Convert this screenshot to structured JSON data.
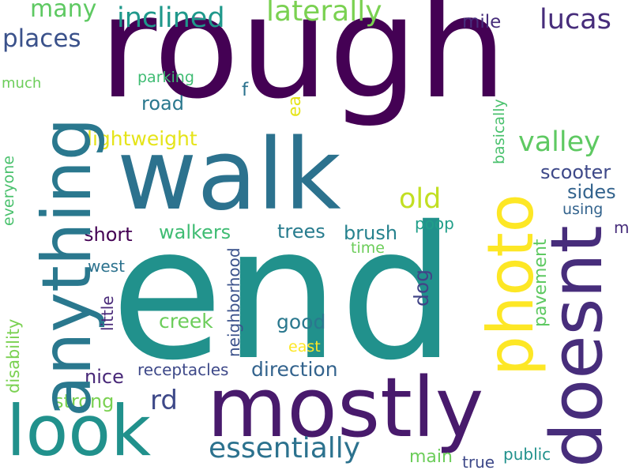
{
  "words": {
    "rough": {
      "text": "rough",
      "color": "#440154"
    },
    "end": {
      "text": "end",
      "color": "#21918c"
    },
    "walk": {
      "text": "walk",
      "color": "#2c728e"
    },
    "mostly": {
      "text": "mostly",
      "color": "#481a6c"
    },
    "look": {
      "text": "look",
      "color": "#21918c"
    },
    "anything": {
      "text": "anything",
      "color": "#2a788e"
    },
    "photo": {
      "text": "photo",
      "color": "#fde725"
    },
    "doesnt": {
      "text": "doesnt",
      "color": "#472d7b"
    },
    "essentially": {
      "text": "essentially",
      "color": "#2c728e"
    },
    "inclined": {
      "text": "inclined",
      "color": "#1f988b"
    },
    "laterally": {
      "text": "laterally",
      "color": "#7ad151"
    },
    "places": {
      "text": "places",
      "color": "#3b528b"
    },
    "many": {
      "text": "many",
      "color": "#5ec962"
    },
    "lucas": {
      "text": "lucas",
      "color": "#472d7b"
    },
    "valley": {
      "text": "valley",
      "color": "#5ec962"
    },
    "old": {
      "text": "old",
      "color": "#c2df23"
    },
    "rd": {
      "text": "rd",
      "color": "#3e4989"
    },
    "mile": {
      "text": "mile",
      "color": "#472d7b"
    },
    "parking": {
      "text": "parking",
      "color": "#3fbc73"
    },
    "road": {
      "text": "road",
      "color": "#2a788e"
    },
    "much": {
      "text": "much",
      "color": "#6ccd5a"
    },
    "f": {
      "text": "f",
      "color": "#2c728e"
    },
    "ea": {
      "text": "ea",
      "color": "#e5e419"
    },
    "basically": {
      "text": "basically",
      "color": "#4ac16d"
    },
    "lightweight": {
      "text": "lightweight",
      "color": "#e5e419"
    },
    "scooter": {
      "text": "scooter",
      "color": "#3e4989"
    },
    "sides": {
      "text": "sides",
      "color": "#33638d"
    },
    "using": {
      "text": "using",
      "color": "#33638d"
    },
    "everyone": {
      "text": "everyone",
      "color": "#4ac16d"
    },
    "short": {
      "text": "short",
      "color": "#440154"
    },
    "walkers": {
      "text": "walkers",
      "color": "#3fbc73"
    },
    "trees": {
      "text": "trees",
      "color": "#287c8e"
    },
    "brush": {
      "text": "brush",
      "color": "#26828e"
    },
    "poop": {
      "text": "poop",
      "color": "#1f9e89"
    },
    "m": {
      "text": "m",
      "color": "#472d7b"
    },
    "time": {
      "text": "time",
      "color": "#6ccd5a"
    },
    "neighborhood": {
      "text": "neighborhood",
      "color": "#3b528b"
    },
    "west": {
      "text": "west",
      "color": "#2c728e"
    },
    "disability": {
      "text": "disability",
      "color": "#7ad151"
    },
    "little": {
      "text": "little",
      "color": "#482878"
    },
    "dog": {
      "text": "dog",
      "color": "#414487"
    },
    "pavement": {
      "text": "pavement",
      "color": "#5ec962"
    },
    "creek": {
      "text": "creek",
      "color": "#6ccd5a"
    },
    "good": {
      "text": "good",
      "color": "#2a788e"
    },
    "east": {
      "text": "east",
      "color": "#fde725"
    },
    "nice": {
      "text": "nice",
      "color": "#482878"
    },
    "receptacles": {
      "text": "receptacles",
      "color": "#3e4989"
    },
    "direction": {
      "text": "direction",
      "color": "#33638d"
    },
    "strong": {
      "text": "strong",
      "color": "#7ad151"
    },
    "main": {
      "text": "main",
      "color": "#6ccd5a"
    },
    "true": {
      "text": "true",
      "color": "#3e4989"
    },
    "public": {
      "text": "public",
      "color": "#21918c"
    }
  }
}
